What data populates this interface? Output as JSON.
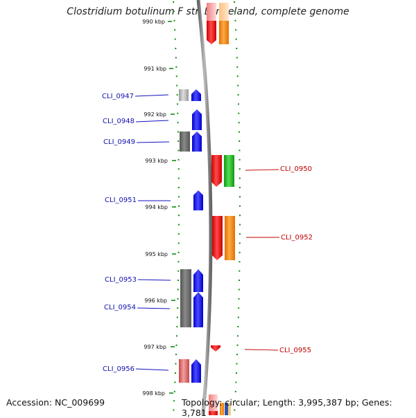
{
  "title": "Clostridium botulinum F str. Langeland, complete genome",
  "accession": "Accession: NC_009699",
  "topology": "Topology: circular; Length: 3,995,387 bp; Genes: 3,781",
  "kbp_labels": [
    "990 kbp",
    "991 kbp",
    "992 kbp",
    "993 kbp",
    "994 kbp",
    "995 kbp",
    "996 kbp",
    "997 kbp",
    "998 kbp"
  ],
  "colors": {
    "forward": "#0000ff",
    "reverse": "#ff0000",
    "green": "#22bb22",
    "orange": "#ff8800",
    "gray": "#666666",
    "ticks": "#138a13",
    "left_label": "#1010b0",
    "right_label": "#c00000"
  },
  "genes": [
    {
      "name": "CLI_0947",
      "strand": "left"
    },
    {
      "name": "CLI_0948",
      "strand": "left"
    },
    {
      "name": "CLI_0949",
      "strand": "left"
    },
    {
      "name": "CLI_0950",
      "strand": "right"
    },
    {
      "name": "CLI_0951",
      "strand": "left"
    },
    {
      "name": "CLI_0952",
      "strand": "right"
    },
    {
      "name": "CLI_0953",
      "strand": "left"
    },
    {
      "name": "CLI_0954",
      "strand": "left"
    },
    {
      "name": "CLI_0955",
      "strand": "right"
    },
    {
      "name": "CLI_0956",
      "strand": "left"
    }
  ]
}
